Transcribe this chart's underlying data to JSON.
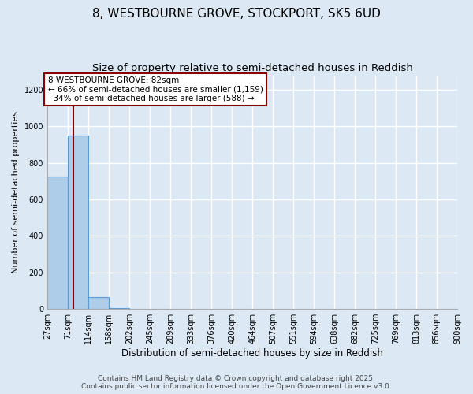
{
  "title": "8, WESTBOURNE GROVE, STOCKPORT, SK5 6UD",
  "subtitle": "Size of property relative to semi-detached houses in Reddish",
  "xlabel": "Distribution of semi-detached houses by size in Reddish",
  "ylabel": "Number of semi-detached properties",
  "footer_line1": "Contains HM Land Registry data © Crown copyright and database right 2025.",
  "footer_line2": "Contains public sector information licensed under the Open Government Licence v3.0.",
  "bar_edges": [
    27,
    71,
    114,
    158,
    202,
    245,
    289,
    333,
    376,
    420,
    464,
    507,
    551,
    594,
    638,
    682,
    725,
    769,
    813,
    856,
    900
  ],
  "bar_heights": [
    727,
    950,
    65,
    5,
    0,
    0,
    0,
    0,
    0,
    0,
    0,
    0,
    0,
    0,
    0,
    0,
    0,
    0,
    0,
    0
  ],
  "bar_color": "#aecde8",
  "bar_edgecolor": "#5b9bd5",
  "property_size": 82,
  "property_line_color": "#8b0000",
  "annotation_text": "8 WESTBOURNE GROVE: 82sqm\n← 66% of semi-detached houses are smaller (1,159)\n  34% of semi-detached houses are larger (588) →",
  "annotation_box_color": "#ffffff",
  "annotation_box_edgecolor": "#8b0000",
  "ylim": [
    0,
    1280
  ],
  "yticks": [
    0,
    200,
    400,
    600,
    800,
    1000,
    1200
  ],
  "background_color": "#dce9f5",
  "grid_color": "#ffffff",
  "title_fontsize": 11,
  "subtitle_fontsize": 9.5,
  "xlabel_fontsize": 8.5,
  "ylabel_fontsize": 8,
  "tick_fontsize": 7,
  "annotation_fontsize": 7.5,
  "footer_fontsize": 6.5
}
